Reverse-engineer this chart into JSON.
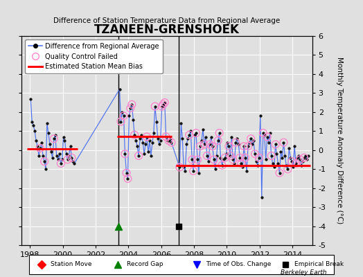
{
  "title": "TZANEEN-GRENSHOEK",
  "subtitle": "Difference of Station Temperature Data from Regional Average",
  "ylabel": "Monthly Temperature Anomaly Difference (°C)",
  "xlim": [
    1997.5,
    2015.2
  ],
  "ylim": [
    -5,
    6
  ],
  "yticks": [
    -5,
    -4,
    -3,
    -2,
    -1,
    0,
    1,
    2,
    3,
    4,
    5,
    6
  ],
  "xticks": [
    1998,
    2000,
    2002,
    2004,
    2006,
    2008,
    2010,
    2012,
    2014
  ],
  "background_color": "#e0e0e0",
  "grid_color": "#ffffff",
  "line_color": "#5577ee",
  "marker_color": "#111111",
  "bias_color": "#ff0000",
  "qc_color": "#ff88cc",
  "segment1_bias": 0.05,
  "segment2_bias": 0.72,
  "segment3_bias": -0.82,
  "segment1_start": 1997.8,
  "segment1_end": 2000.9,
  "segment2_start": 2003.3,
  "segment2_end": 2006.65,
  "segment3_start": 2006.9,
  "segment3_end": 2015.1,
  "record_gap_x": 2003.4,
  "record_gap_y": -4.0,
  "empirical_break_x": 2007.05,
  "empirical_break_y": -4.0,
  "vertical_line1_x": 2003.4,
  "vertical_line2_x": 2007.05,
  "data_x": [
    1998.04,
    1998.12,
    1998.21,
    1998.29,
    1998.37,
    1998.46,
    1998.54,
    1998.62,
    1998.71,
    1998.79,
    1998.88,
    1998.96,
    1999.04,
    1999.12,
    1999.21,
    1999.29,
    1999.37,
    1999.46,
    1999.54,
    1999.62,
    1999.71,
    1999.79,
    1999.88,
    1999.96,
    2000.04,
    2000.12,
    2000.21,
    2000.29,
    2000.37,
    2000.46,
    2000.54,
    2000.62,
    2000.71,
    2003.46,
    2003.54,
    2003.62,
    2003.71,
    2003.79,
    2003.88,
    2003.96,
    2004.04,
    2004.12,
    2004.21,
    2004.29,
    2004.37,
    2004.46,
    2004.54,
    2004.62,
    2004.71,
    2004.79,
    2004.88,
    2004.96,
    2005.04,
    2005.12,
    2005.21,
    2005.29,
    2005.37,
    2005.46,
    2005.54,
    2005.62,
    2005.71,
    2005.79,
    2005.88,
    2005.96,
    2006.04,
    2006.12,
    2006.21,
    2006.29,
    2006.37,
    2006.46,
    2006.54,
    2006.62,
    2007.12,
    2007.21,
    2007.29,
    2007.37,
    2007.46,
    2007.54,
    2007.62,
    2007.71,
    2007.79,
    2007.88,
    2007.96,
    2008.04,
    2008.12,
    2008.21,
    2008.29,
    2008.37,
    2008.46,
    2008.54,
    2008.62,
    2008.71,
    2008.79,
    2008.88,
    2008.96,
    2009.04,
    2009.12,
    2009.21,
    2009.29,
    2009.37,
    2009.46,
    2009.54,
    2009.62,
    2009.71,
    2009.79,
    2009.88,
    2009.96,
    2010.04,
    2010.12,
    2010.21,
    2010.29,
    2010.37,
    2010.46,
    2010.54,
    2010.62,
    2010.71,
    2010.79,
    2010.88,
    2010.96,
    2011.04,
    2011.12,
    2011.21,
    2011.29,
    2011.37,
    2011.46,
    2011.54,
    2011.62,
    2011.71,
    2011.79,
    2011.88,
    2011.96,
    2012.04,
    2012.12,
    2012.21,
    2012.29,
    2012.37,
    2012.46,
    2012.54,
    2012.62,
    2012.71,
    2012.79,
    2012.88,
    2012.96,
    2013.04,
    2013.12,
    2013.21,
    2013.29,
    2013.37,
    2013.46,
    2013.54,
    2013.62,
    2013.71,
    2013.79,
    2013.88,
    2013.96,
    2014.04,
    2014.12,
    2014.21,
    2014.29,
    2014.37,
    2014.46,
    2014.54,
    2014.62,
    2014.71,
    2014.79,
    2014.88,
    2014.96
  ],
  "data_y": [
    2.7,
    1.5,
    1.3,
    1.0,
    0.5,
    0.2,
    -0.3,
    0.1,
    0.4,
    -0.3,
    -0.6,
    -1.0,
    1.4,
    0.9,
    0.3,
    -0.1,
    -0.4,
    0.6,
    0.8,
    -0.3,
    -0.5,
    -0.2,
    -0.7,
    -0.5,
    0.7,
    0.5,
    -0.2,
    -0.5,
    -0.3,
    0.2,
    -0.4,
    -0.6,
    -0.7,
    3.2,
    1.5,
    2.0,
    1.8,
    -0.2,
    -1.2,
    -1.5,
    1.8,
    2.2,
    2.4,
    1.6,
    0.8,
    0.5,
    0.2,
    -0.3,
    0.6,
    0.8,
    0.4,
    -0.2,
    0.3,
    0.7,
    -0.1,
    0.5,
    -0.3,
    0.4,
    0.9,
    2.3,
    1.5,
    0.6,
    0.3,
    0.5,
    2.3,
    2.4,
    2.5,
    0.7,
    0.5,
    0.5,
    0.6,
    0.4,
    -0.9,
    1.4,
    0.6,
    -0.9,
    -1.1,
    0.3,
    0.6,
    0.8,
    1.0,
    -0.5,
    -1.1,
    0.8,
    0.9,
    -0.5,
    -1.2,
    0.2,
    0.5,
    1.1,
    0.3,
    0.7,
    -0.3,
    -0.6,
    0.3,
    0.7,
    0.2,
    -0.5,
    -1.0,
    -0.3,
    0.5,
    0.9,
    -0.4,
    -0.8,
    -0.5,
    -0.4,
    -0.2,
    0.4,
    0.2,
    -0.3,
    0.7,
    -0.5,
    -0.7,
    0.4,
    0.6,
    0.3,
    -0.4,
    -0.7,
    -0.9,
    0.2,
    -0.4,
    -1.1,
    0.2,
    0.4,
    0.6,
    0.3,
    0.5,
    -0.2,
    -0.6,
    -0.8,
    -0.4,
    1.8,
    -2.5,
    0.9,
    0.8,
    -0.5,
    0.7,
    0.4,
    0.9,
    -0.3,
    -0.7,
    -0.9,
    0.3,
    -0.2,
    -0.7,
    -1.2,
    -0.1,
    -0.4,
    0.4,
    -0.3,
    -0.8,
    -1.0,
    0.1,
    -0.4,
    -0.6,
    -0.9,
    0.2,
    -0.7,
    -0.4,
    -0.3,
    -0.5,
    -0.8,
    -0.6,
    -0.4,
    -0.3,
    -0.5,
    -0.3
  ],
  "qc_failed_indices": [
    7,
    10,
    17,
    22,
    27,
    30,
    34,
    36,
    37,
    38,
    39,
    41,
    42,
    44,
    47,
    53,
    59,
    64,
    65,
    66,
    67,
    69,
    71,
    72,
    79,
    81,
    82,
    84,
    85,
    87,
    90,
    92,
    94,
    96,
    97,
    100,
    101,
    103,
    105,
    108,
    109,
    111,
    113,
    116,
    117,
    119,
    120,
    122,
    124,
    127,
    130,
    133,
    136,
    139,
    142,
    145,
    148,
    151,
    154,
    157,
    160,
    163
  ]
}
